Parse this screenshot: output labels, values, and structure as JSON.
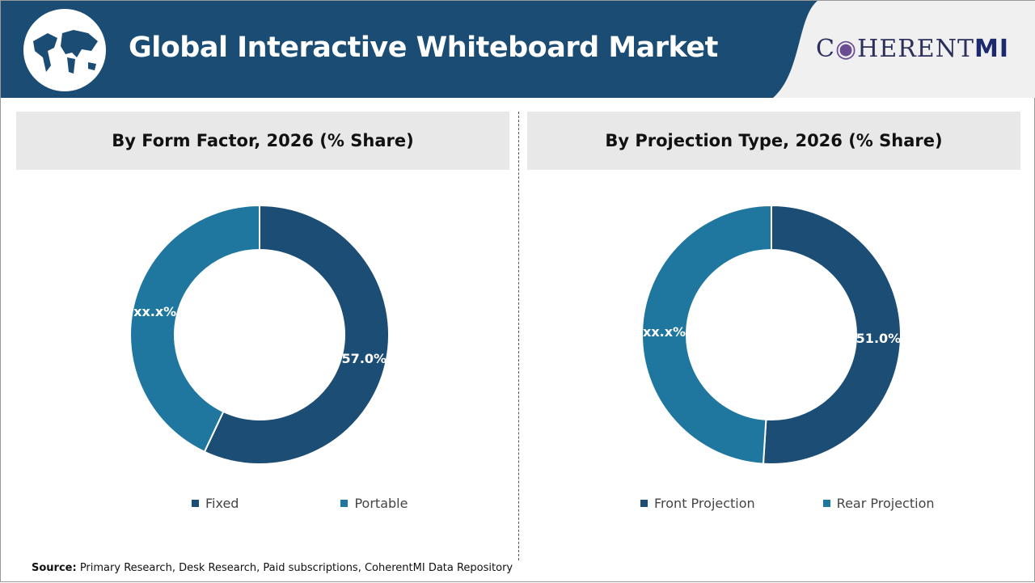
{
  "header": {
    "title": "Global Interactive Whiteboard Market",
    "brand_left": "C",
    "brand_mid": "HERENT",
    "brand_right": "MI",
    "icon": "world-map-globe-icon"
  },
  "colors": {
    "header": "#1b4c74",
    "dark": "#1b4d75",
    "light": "#1f77a0"
  },
  "chart_data": [
    {
      "type": "pie",
      "donut": true,
      "title": "By Form Factor, 2026 (% Share)",
      "categories": [
        "Fixed",
        "Portable"
      ],
      "values": [
        57.0,
        43.0
      ],
      "labels": [
        "57.0%",
        "xx.x%"
      ],
      "colors": [
        "#1b4d75",
        "#1f77a0"
      ],
      "legend": "bottom"
    },
    {
      "type": "pie",
      "donut": true,
      "title": "By Projection Type, 2026 (% Share)",
      "categories": [
        "Front Projection",
        "Rear Projection"
      ],
      "values": [
        51.0,
        49.0
      ],
      "labels": [
        "51.0%",
        "xx.x%"
      ],
      "colors": [
        "#1b4d75",
        "#1f77a0"
      ],
      "legend": "bottom"
    }
  ],
  "source": {
    "label": "Source:",
    "text": " Primary Research, Desk Research, Paid subscriptions, CoherentMI Data Repository"
  }
}
